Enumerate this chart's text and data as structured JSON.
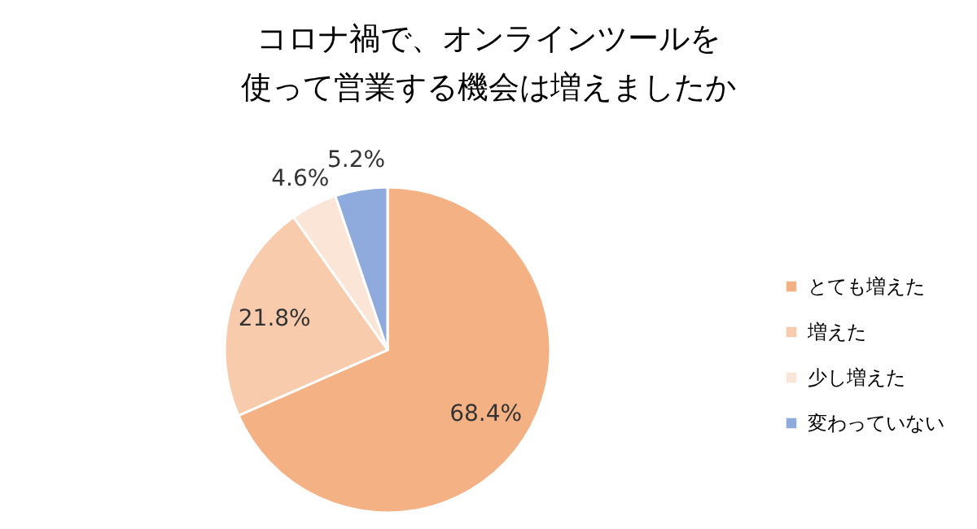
{
  "chart_data": {
    "type": "pie",
    "title": "コロナ禍で、オンラインツールを使って営業する機会は増えましたか",
    "categories": [
      "とても増えた",
      "増えた",
      "少し増えた",
      "変わっていない"
    ],
    "values": [
      68.4,
      21.8,
      4.6,
      5.2
    ],
    "colors": [
      "#f4b183",
      "#f8cbad",
      "#fbe5d6",
      "#8faadc"
    ],
    "value_labels": [
      "68.4%",
      "21.8%",
      "4.6%",
      "5.2%"
    ],
    "legend": "right"
  }
}
